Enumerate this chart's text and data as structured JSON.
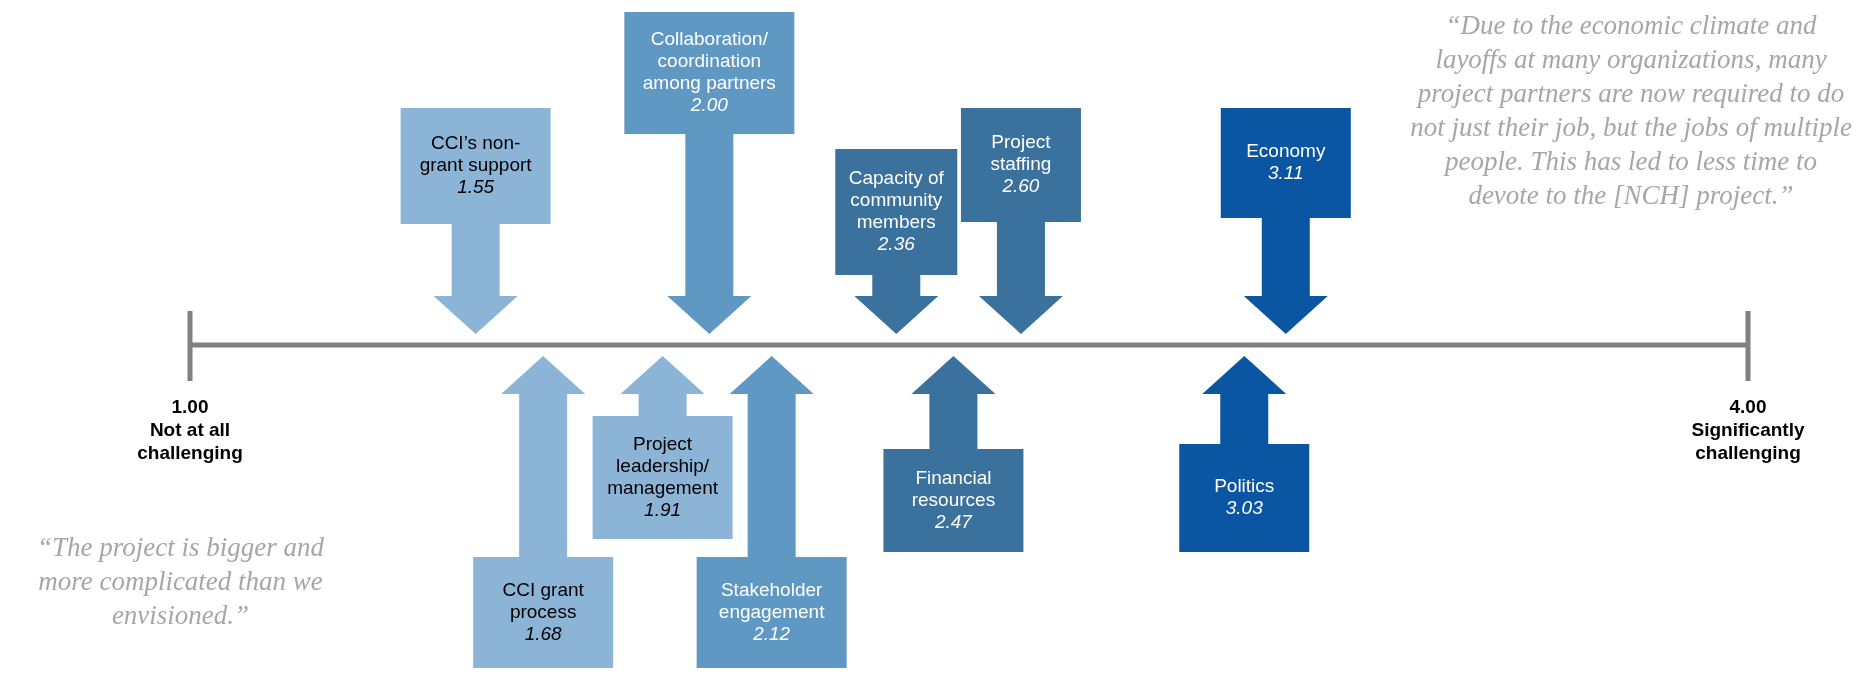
{
  "chart_data": {
    "type": "other",
    "categories": [
      "CCI’s non-grant support",
      "CCI grant process",
      "Project leadership/management",
      "Collaboration/coordination among partners",
      "Stakeholder engagement",
      "Capacity of community members",
      "Financial resources",
      "Project staffing",
      "Politics",
      "Economy"
    ],
    "values": [
      1.55,
      1.68,
      1.91,
      2.0,
      2.12,
      2.36,
      2.47,
      2.6,
      3.03,
      3.11
    ],
    "value_labels": [
      "1.55",
      "1.68",
      "1.91",
      "2.00",
      "2.12",
      "2.36",
      "2.47",
      "2.60",
      "3.03",
      "3.11"
    ],
    "colors": [
      "#8bb4d6",
      "#8bb4d6",
      "#8bb4d6",
      "#6098c4",
      "#6098c4",
      "#3a719d",
      "#3a719d",
      "#3a719d",
      "#0b56a2",
      "#0b56a2"
    ],
    "annotations": [
      "“Due to the economic climate and layoffs at many organizations, many project partners are now required to do not just their job, but the jobs of multiple people. This has led to less time to devote to the [NCH] project.”",
      "“The project is bigger and more complicated than we envisioned.”",
      "1.00",
      "Not at all challenging",
      "4.00",
      "Significantly challenging"
    ]
  }
}
